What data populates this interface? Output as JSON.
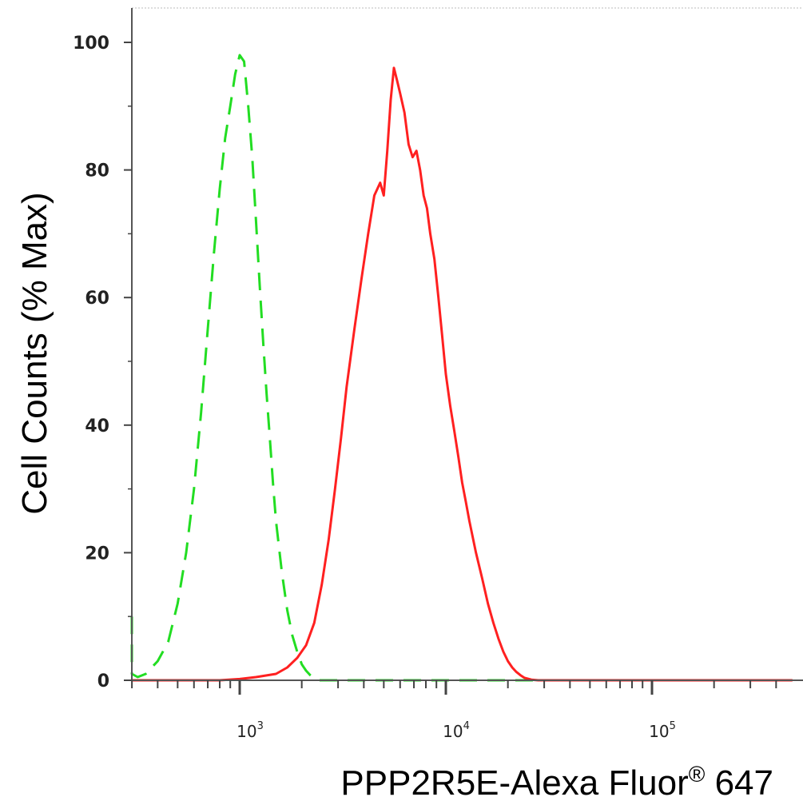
{
  "chart_data": {
    "type": "line",
    "title": "",
    "xlabel": "PPP2R5E-Alexa Fluor",
    "xlabel_sup": "®",
    "xlabel_suffix": " 647",
    "ylabel": "Cell Counts (% Max)",
    "x_scale": "log",
    "xlim": [
      260,
      480000
    ],
    "ylim": [
      0,
      100
    ],
    "yticks": [
      0,
      20,
      40,
      60,
      80,
      100
    ],
    "xticks": [
      {
        "value": 1000,
        "base": "10",
        "exp": "3"
      },
      {
        "value": 10000,
        "base": "10",
        "exp": "4"
      },
      {
        "value": 100000,
        "base": "10",
        "exp": "5"
      }
    ],
    "grid": false,
    "legend": "none",
    "series": [
      {
        "color": "#22dd22",
        "style": "dashed",
        "x": [
          260,
          280,
          300,
          320,
          350,
          400,
          450,
          500,
          550,
          600,
          650,
          700,
          750,
          800,
          850,
          900,
          950,
          1000,
          1050,
          1100,
          1150,
          1200,
          1250,
          1300,
          1350,
          1400,
          1450,
          1500,
          1600,
          1700,
          1800,
          1900,
          2000,
          2100,
          2200,
          2300,
          2400,
          2600,
          3000,
          5000,
          10000,
          30000,
          100000,
          480000
        ],
        "y": [
          10,
          3,
          1,
          0.5,
          1,
          3,
          6,
          12,
          20,
          30,
          42,
          55,
          67,
          77,
          85,
          90,
          95,
          98,
          97,
          90,
          82,
          72,
          62,
          53,
          45,
          38,
          31,
          25,
          17,
          11,
          7,
          4.5,
          2.5,
          1.5,
          0.8,
          0.3,
          0,
          0,
          0,
          0,
          0,
          0,
          0,
          0
        ]
      },
      {
        "color": "#ff2020",
        "style": "solid",
        "x": [
          260,
          500,
          800,
          1000,
          1200,
          1500,
          1700,
          1900,
          2100,
          2300,
          2500,
          2700,
          2900,
          3100,
          3300,
          3600,
          3900,
          4200,
          4500,
          4800,
          5000,
          5200,
          5400,
          5600,
          5800,
          6000,
          6300,
          6600,
          6900,
          7200,
          7500,
          7800,
          8100,
          8400,
          8800,
          9200,
          9600,
          10000,
          10500,
          11000,
          11500,
          12000,
          12500,
          13000,
          14000,
          15000,
          16000,
          17000,
          18000,
          19000,
          20000,
          21000,
          22000,
          23000,
          24000,
          26000,
          28000,
          30000,
          40000,
          100000,
          480000
        ],
        "y": [
          0,
          0,
          0,
          0.2,
          0.5,
          1,
          2,
          3.5,
          5.5,
          9,
          15,
          22,
          30,
          38,
          46,
          55,
          63,
          70,
          76,
          78,
          76,
          83,
          91,
          96,
          94,
          92,
          89,
          84,
          82,
          83,
          80,
          76,
          74,
          70,
          66,
          60,
          54,
          48,
          43,
          39,
          35,
          31,
          28,
          25,
          20,
          16,
          12,
          9,
          6.5,
          4.5,
          3,
          2,
          1.3,
          0.8,
          0.4,
          0.1,
          0,
          0,
          0,
          0,
          0
        ]
      }
    ]
  }
}
